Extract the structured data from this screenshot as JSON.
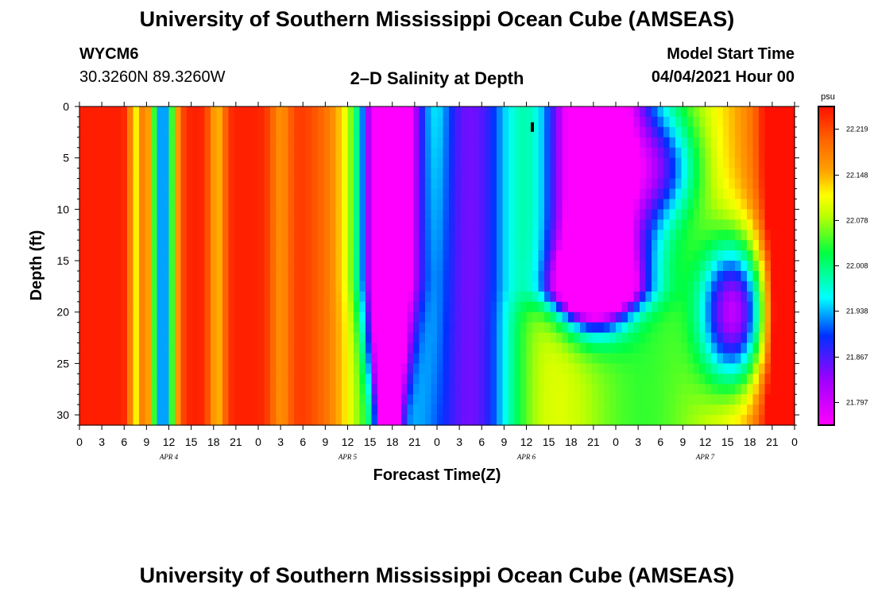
{
  "header": {
    "title_top": "University of Southern Mississippi Ocean Cube (AMSEAS)",
    "title_bottom": "University of Southern Mississippi Ocean Cube (AMSEAS)",
    "station_id": "WYCM6",
    "station_coords": "30.3260N  89.3260W",
    "plot_title": "2–D Salinity at Depth",
    "start_label": "Model Start Time",
    "start_value": "04/04/2021 Hour 00"
  },
  "chart_data": {
    "type": "heatmap",
    "title": "2–D Salinity at Depth",
    "xlabel": "Forecast Time(Z)",
    "ylabel": "Depth (ft)",
    "xlim": [
      0,
      96
    ],
    "ylim": [
      31,
      0
    ],
    "x_ticks": [
      0,
      3,
      6,
      9,
      12,
      15,
      18,
      21,
      24,
      27,
      30,
      33,
      36,
      39,
      42,
      45,
      48,
      51,
      54,
      57,
      60,
      63,
      66,
      69,
      72,
      75,
      78,
      81,
      84,
      87,
      90,
      93,
      96
    ],
    "x_tick_labels": [
      "0",
      "3",
      "6",
      "9",
      "12",
      "15",
      "18",
      "21",
      "0",
      "3",
      "6",
      "9",
      "12",
      "15",
      "18",
      "21",
      "0",
      "3",
      "6",
      "9",
      "12",
      "15",
      "18",
      "21",
      "0",
      "3",
      "6",
      "9",
      "12",
      "15",
      "18",
      "21",
      "0"
    ],
    "day_labels": [
      {
        "x": 12,
        "text": "APR 4"
      },
      {
        "x": 36,
        "text": "APR 5"
      },
      {
        "x": 60,
        "text": "APR 6"
      },
      {
        "x": 84,
        "text": "APR 7"
      }
    ],
    "y_ticks": [
      0,
      5,
      10,
      15,
      20,
      25,
      30
    ],
    "colorbar": {
      "unit": "psu",
      "min": 21.762,
      "max": 22.254,
      "tick_labels": [
        "22.219",
        "22.148",
        "22.078",
        "22.008",
        "21.938",
        "21.867",
        "21.797"
      ],
      "tick_values": [
        22.219,
        22.148,
        22.078,
        22.008,
        21.938,
        21.867,
        21.797
      ]
    },
    "marker": {
      "x": 60.8,
      "depth": 2
    }
  }
}
